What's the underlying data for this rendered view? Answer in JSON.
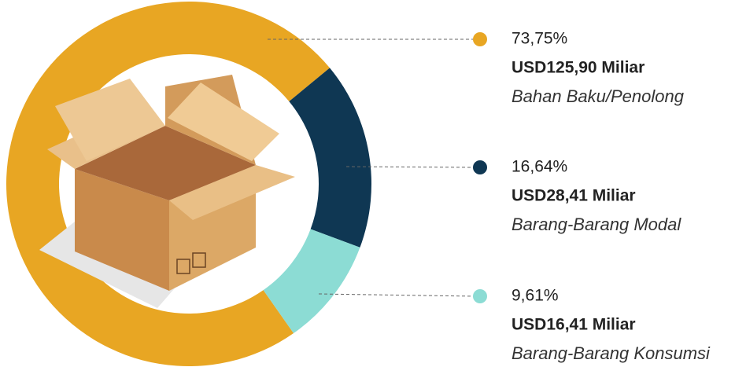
{
  "chart_data": {
    "type": "pie",
    "donut": true,
    "categories": [
      "Bahan Baku/Penolong",
      "Barang-Barang Modal",
      "Barang-Barang Konsumsi"
    ],
    "values": [
      73.75,
      16.64,
      9.61
    ],
    "value_labels": [
      "73,75%",
      "16,64%",
      "9,61%"
    ],
    "amounts": [
      "USD125,90 Miliar",
      "USD28,41 Miliar",
      "USD16,41 Miliar"
    ],
    "colors": [
      "#e8a623",
      "#0f3753",
      "#8cdcd4"
    ]
  }
}
